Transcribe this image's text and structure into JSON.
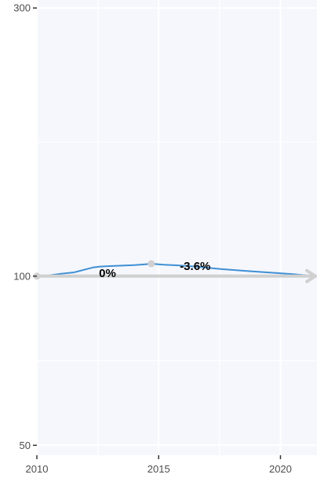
{
  "chart_data": {
    "type": "line",
    "title": "",
    "xlabel": "",
    "ylabel": "",
    "x_scale": "linear",
    "y_scale": "log",
    "xlim": [
      2010,
      2021.5
    ],
    "ylim": [
      48,
      310
    ],
    "x_ticks": [
      2010,
      2015,
      2020
    ],
    "x_tick_labels": [
      "2010",
      "2015",
      "2020"
    ],
    "y_ticks": [
      50,
      100,
      300
    ],
    "y_tick_labels": [
      "50",
      "100",
      "300"
    ],
    "grid": true,
    "legend": "none",
    "colors": {
      "panel_background": "#f5f7fd",
      "grid": "#ffffff",
      "series_line": "#3f8fd3",
      "trend_arrow": "#d0d0d0",
      "annotation": "#000000",
      "tick_text": "#4d4d4d"
    },
    "series": [
      {
        "x": [
          2010.0,
          2010.5,
          2011.0,
          2011.5,
          2011.7,
          2012.0,
          2012.3,
          2012.6,
          2013.0,
          2013.5,
          2014.0,
          2014.5,
          2014.7,
          2015.2,
          2015.8,
          2016.5,
          2017.5,
          2018.5,
          2019.5,
          2020.5,
          2021.4
        ],
        "y": [
          100,
          100.3,
          101.0,
          101.5,
          102.0,
          102.8,
          103.6,
          104.0,
          104.2,
          104.4,
          104.6,
          105.0,
          105.2,
          104.8,
          104.5,
          104.0,
          103.0,
          102.2,
          101.5,
          100.8,
          100.0
        ]
      }
    ],
    "trend_arrow": {
      "x": [
        2010.0,
        2021.5
      ],
      "y": [
        100,
        100
      ]
    },
    "markers": [
      {
        "x": 2010.0,
        "y": 100
      },
      {
        "x": 2014.7,
        "y": 105.2
      }
    ],
    "annotations": [
      {
        "text": "0%",
        "x": 2012.9,
        "y": 101.2
      },
      {
        "text": "-3.6%",
        "x": 2016.5,
        "y": 104.2
      }
    ]
  }
}
